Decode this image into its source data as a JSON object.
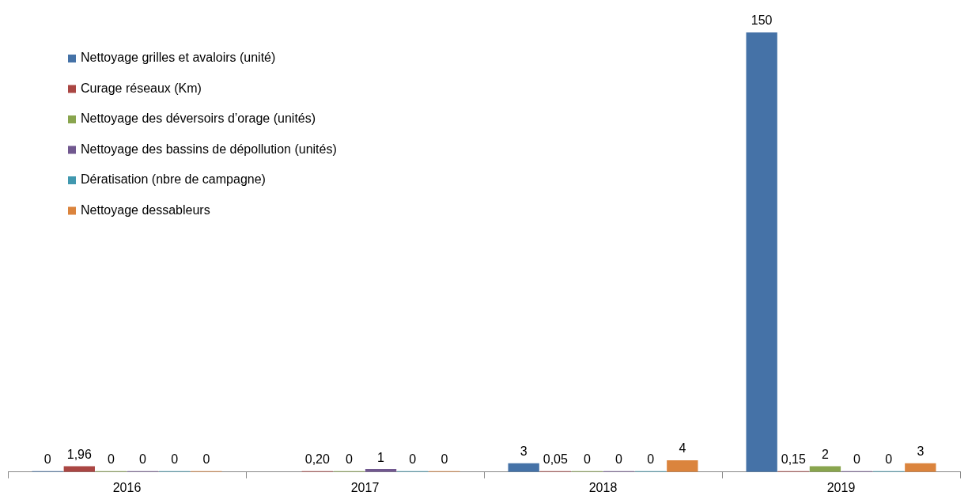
{
  "chart_data": {
    "type": "bar",
    "categories": [
      "2016",
      "2017",
      "2018",
      "2019"
    ],
    "legend": "top left",
    "series": [
      {
        "name": "Nettoyage grilles et avaloirs (unité)",
        "color": "#4572a7",
        "values": [
          0,
          null,
          3,
          150
        ],
        "value_labels": [
          "0",
          null,
          "3",
          "150"
        ]
      },
      {
        "name": "Curage réseaux (Km)",
        "color": "#aa4643",
        "values": [
          1.96,
          0.2,
          0.05,
          0.15
        ],
        "value_labels": [
          "1,96",
          "0,20",
          "0,05",
          "0,15"
        ]
      },
      {
        "name": "Nettoyage des déversoirs d’orage (unités)",
        "color": "#89a54e",
        "values": [
          0,
          0,
          0,
          2
        ],
        "value_labels": [
          "0",
          "0",
          "0",
          "2"
        ]
      },
      {
        "name": "Nettoyage des bassins de dépollution (unités)",
        "color": "#71588f",
        "values": [
          0,
          1,
          0,
          0
        ],
        "value_labels": [
          "0",
          "1",
          "0",
          "0"
        ]
      },
      {
        "name": "Dératisation (nbre de campagne)",
        "color": "#4198af",
        "values": [
          0,
          0,
          0,
          0
        ],
        "value_labels": [
          "0",
          "0",
          "0",
          "0"
        ]
      },
      {
        "name": "Nettoyage dessableurs",
        "color": "#db843d",
        "values": [
          0,
          0,
          4,
          3
        ],
        "value_labels": [
          "0",
          "0",
          "4",
          "3"
        ]
      }
    ]
  }
}
